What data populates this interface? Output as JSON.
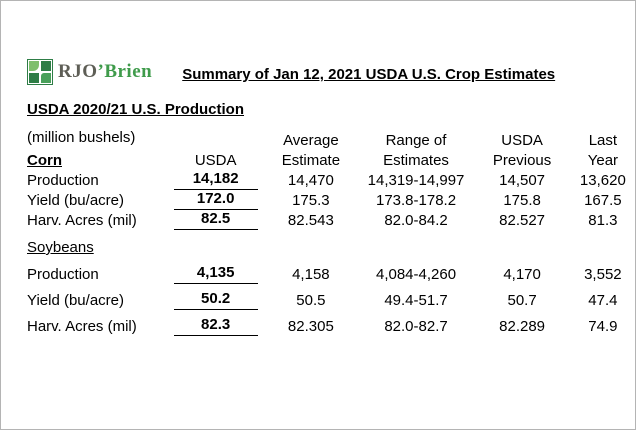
{
  "logo": {
    "rjo": "RJO",
    "brien": "’Brien",
    "brand_green": "#3f9b4b",
    "brand_gray": "#5e5e56"
  },
  "title": "Summary of Jan 12, 2021 USDA U.S. Crop Estimates",
  "section_title": "USDA 2020/21 U.S. Production",
  "table": {
    "unit_note": "(million bushels)",
    "col_headers": [
      "USDA",
      "Average Estimate",
      "Range of Estimates",
      "USDA Previous",
      "Last Year"
    ],
    "groups": [
      {
        "name": "Corn",
        "rows": [
          {
            "label": "Production",
            "usda": "14,182",
            "avg": "14,470",
            "range": "14,319-14,997",
            "prev": "14,507",
            "last": "13,620"
          },
          {
            "label": "Yield (bu/acre)",
            "usda": "172.0",
            "avg": "175.3",
            "range": "173.8-178.2",
            "prev": "175.8",
            "last": "167.5"
          },
          {
            "label": "Harv. Acres (mil)",
            "usda": "82.5",
            "avg": "82.543",
            "range": "82.0-84.2",
            "prev": "82.527",
            "last": "81.3"
          }
        ]
      },
      {
        "name": "Soybeans",
        "rows": [
          {
            "label": "Production",
            "usda": "4,135",
            "avg": "4,158",
            "range": "4,084-4,260",
            "prev": "4,170",
            "last": "3,552"
          },
          {
            "label": "Yield (bu/acre)",
            "usda": "50.2",
            "avg": "50.5",
            "range": "49.4-51.7",
            "prev": "50.7",
            "last": "47.4"
          },
          {
            "label": "Harv. Acres (mil)",
            "usda": "82.3",
            "avg": "82.305",
            "range": "82.0-82.7",
            "prev": "82.289",
            "last": "74.9"
          }
        ]
      }
    ]
  }
}
